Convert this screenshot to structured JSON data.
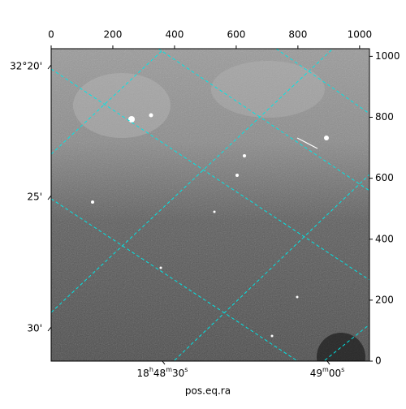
{
  "chart_data": {
    "type": "image",
    "xlabel": "pos.eq.ra",
    "xlim": [
      0,
      1032
    ],
    "ylim": [
      0,
      1025
    ],
    "xticks": [
      0,
      200,
      400,
      600,
      800,
      1000
    ],
    "yticks": [
      0,
      200,
      400,
      600,
      800,
      1000
    ],
    "dec_tick_labels": [
      "32°20'",
      "25'",
      "30'"
    ],
    "ra_tick_labels": [
      "18h48m30s",
      "49m00s"
    ],
    "grid_color": "#00e5e5"
  }
}
